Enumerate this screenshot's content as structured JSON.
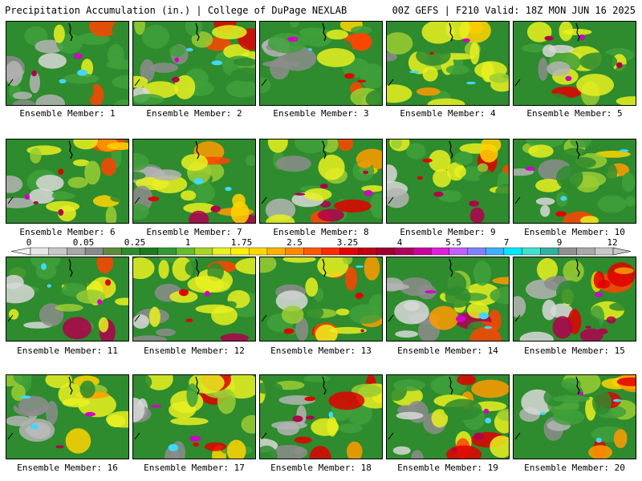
{
  "header": {
    "left": "Precipitation Accumulation (in.) | College of DuPage NEXLAB",
    "right": "00Z GEFS | F210 Valid: 18Z MON JUN 16 2025"
  },
  "panels": [
    {
      "label": "Ensemble Member: 1"
    },
    {
      "label": "Ensemble Member: 2"
    },
    {
      "label": "Ensemble Member: 3"
    },
    {
      "label": "Ensemble Member: 4"
    },
    {
      "label": "Ensemble Member: 5"
    },
    {
      "label": "Ensemble Member: 6"
    },
    {
      "label": "Ensemble Member: 7"
    },
    {
      "label": "Ensemble Member: 8"
    },
    {
      "label": "Ensemble Member: 9"
    },
    {
      "label": "Ensemble Member: 10"
    },
    {
      "label": "Ensemble Member: 11"
    },
    {
      "label": "Ensemble Member: 12"
    },
    {
      "label": "Ensemble Member: 13"
    },
    {
      "label": "Ensemble Member: 14"
    },
    {
      "label": "Ensemble Member: 15"
    },
    {
      "label": "Ensemble Member: 16"
    },
    {
      "label": "Ensemble Member: 17"
    },
    {
      "label": "Ensemble Member: 18"
    },
    {
      "label": "Ensemble Member: 19"
    },
    {
      "label": "Ensemble Member: 20"
    }
  ],
  "colorbar": {
    "tick_labels": [
      "0",
      "0.05",
      "0.25",
      "1",
      "1.75",
      "2.5",
      "3.25",
      "4",
      "5.5",
      "7",
      "9",
      "12"
    ],
    "colors": [
      "#e6e6e6",
      "#c8c8c8",
      "#a8a8a8",
      "#8a8a8a",
      "#5c8c3c",
      "#2e8b2e",
      "#1f7a1f",
      "#339933",
      "#66bb33",
      "#a8d428",
      "#e8f020",
      "#fff000",
      "#ffd800",
      "#ffb000",
      "#ff8a00",
      "#ff5a00",
      "#ff2a00",
      "#e60000",
      "#c00010",
      "#a00030",
      "#b00060",
      "#cc00a0",
      "#e020d8",
      "#c060ff",
      "#8080ff",
      "#40b0ff",
      "#00e8ff",
      "#40e0d0",
      "#30b0a0",
      "#909090",
      "#a8a8a8",
      "#c8c8c8"
    ]
  }
}
